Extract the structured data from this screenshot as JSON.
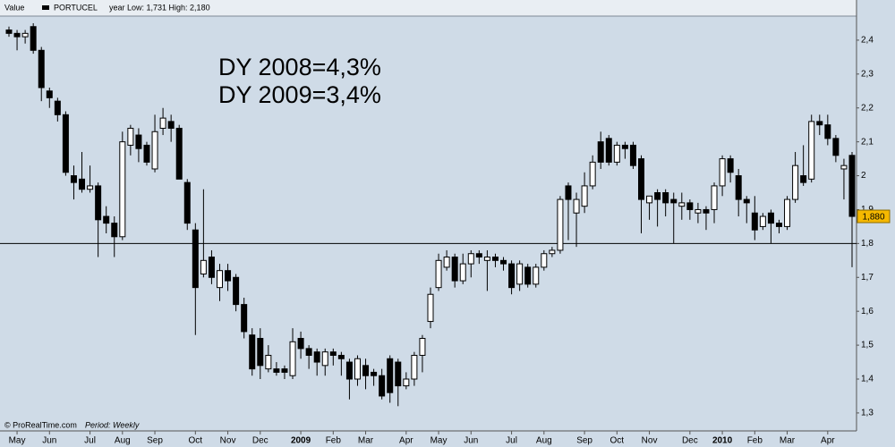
{
  "chart_data": {
    "type": "candlestick",
    "header": {
      "label": "Value",
      "symbol": "PORTUCEL",
      "range": "year Low: 1,731 High: 2,180"
    },
    "footer": {
      "source": "© ProRealTime.com",
      "period": "Period: Weekly"
    },
    "annotations": [
      "DY 2008=4,3%",
      "DY 2009=3,4%"
    ],
    "categories": [
      null,
      "May",
      null,
      null,
      null,
      "Jun",
      null,
      null,
      null,
      null,
      "Jul",
      null,
      null,
      null,
      "Aug",
      null,
      null,
      null,
      "Sep",
      null,
      null,
      null,
      null,
      "Oct",
      null,
      null,
      null,
      "Nov",
      null,
      null,
      null,
      "Dec",
      null,
      null,
      null,
      null,
      "2009",
      null,
      null,
      null,
      "Feb",
      null,
      null,
      null,
      "Mar",
      null,
      null,
      null,
      null,
      "Apr",
      null,
      null,
      null,
      "May",
      null,
      null,
      null,
      "Jun",
      null,
      null,
      null,
      null,
      "Jul",
      null,
      null,
      null,
      "Aug",
      null,
      null,
      null,
      null,
      "Sep",
      null,
      null,
      null,
      "Oct",
      null,
      null,
      null,
      "Nov",
      null,
      null,
      null,
      null,
      "Dec",
      null,
      null,
      null,
      "2010",
      null,
      null,
      null,
      "Feb",
      null,
      null,
      null,
      "Mar",
      null,
      null,
      null,
      null,
      "Apr",
      null,
      null,
      null
    ],
    "open": [
      2.43,
      2.42,
      2.41,
      2.44,
      2.37,
      2.25,
      2.22,
      2.18,
      2.0,
      1.99,
      1.96,
      1.97,
      1.88,
      1.86,
      1.82,
      2.09,
      2.12,
      2.09,
      2.02,
      2.14,
      2.16,
      2.14,
      1.98,
      1.84,
      1.71,
      1.76,
      1.67,
      1.72,
      1.7,
      1.62,
      1.53,
      1.52,
      1.43,
      1.43,
      1.43,
      1.41,
      1.52,
      1.49,
      1.48,
      1.44,
      1.48,
      1.47,
      1.45,
      1.4,
      1.44,
      1.42,
      1.41,
      1.46,
      1.45,
      1.38,
      1.4,
      1.47,
      1.57,
      1.67,
      1.73,
      1.76,
      1.69,
      1.74,
      1.77,
      1.75,
      1.76,
      1.75,
      1.74,
      1.68,
      1.73,
      1.68,
      1.73,
      1.77,
      1.78,
      1.97,
      1.89,
      1.91,
      1.97,
      2.1,
      2.11,
      2.04,
      2.09,
      2.09,
      2.05,
      1.92,
      1.95,
      1.95,
      1.93,
      1.91,
      1.92,
      1.89,
      1.9,
      1.9,
      1.97,
      2.05,
      2.0,
      1.93,
      1.89,
      1.85,
      1.89,
      1.86,
      1.85,
      1.93,
      2.0,
      1.99,
      2.16,
      2.15,
      2.11,
      2.02,
      2.06
    ],
    "high": [
      2.44,
      2.43,
      2.43,
      2.45,
      2.38,
      2.26,
      2.23,
      2.19,
      2.03,
      2.07,
      2.03,
      1.98,
      1.91,
      1.88,
      2.13,
      2.15,
      2.14,
      2.1,
      2.18,
      2.2,
      2.18,
      2.15,
      1.99,
      1.86,
      1.96,
      1.78,
      1.74,
      1.74,
      1.71,
      1.64,
      1.55,
      1.55,
      1.5,
      1.45,
      1.44,
      1.55,
      1.54,
      1.5,
      1.49,
      1.49,
      1.49,
      1.48,
      1.46,
      1.47,
      1.46,
      1.43,
      1.43,
      1.47,
      1.46,
      1.42,
      1.48,
      1.53,
      1.67,
      1.77,
      1.78,
      1.77,
      1.77,
      1.78,
      1.78,
      1.78,
      1.77,
      1.76,
      1.75,
      1.75,
      1.74,
      1.74,
      1.78,
      1.79,
      1.94,
      1.98,
      1.95,
      2.01,
      2.06,
      2.13,
      2.12,
      2.1,
      2.1,
      2.1,
      2.06,
      1.94,
      1.96,
      1.96,
      1.95,
      1.95,
      1.93,
      1.92,
      1.91,
      1.98,
      2.06,
      2.06,
      2.02,
      1.94,
      1.94,
      1.89,
      1.9,
      1.87,
      1.94,
      2.07,
      2.09,
      2.18,
      2.18,
      2.18,
      2.12,
      2.05,
      2.07
    ],
    "low": [
      2.41,
      2.37,
      2.39,
      2.36,
      2.22,
      2.2,
      2.16,
      2.0,
      1.93,
      1.95,
      1.95,
      1.76,
      1.83,
      1.76,
      1.81,
      2.06,
      2.04,
      2.03,
      2.01,
      2.12,
      2.1,
      1.99,
      1.84,
      1.53,
      1.7,
      1.68,
      1.63,
      1.66,
      1.6,
      1.52,
      1.41,
      1.4,
      1.42,
      1.41,
      1.4,
      1.4,
      1.46,
      1.43,
      1.41,
      1.41,
      1.44,
      1.41,
      1.34,
      1.38,
      1.37,
      1.38,
      1.34,
      1.33,
      1.32,
      1.37,
      1.38,
      1.42,
      1.55,
      1.66,
      1.72,
      1.67,
      1.68,
      1.7,
      1.74,
      1.66,
      1.73,
      1.72,
      1.65,
      1.66,
      1.67,
      1.67,
      1.72,
      1.76,
      1.77,
      1.81,
      1.79,
      1.89,
      1.96,
      2.02,
      2.03,
      2.03,
      2.05,
      2.02,
      1.83,
      1.87,
      1.85,
      1.88,
      1.8,
      1.87,
      1.87,
      1.86,
      1.84,
      1.86,
      1.94,
      1.98,
      1.88,
      1.86,
      1.81,
      1.84,
      1.8,
      1.83,
      1.84,
      1.92,
      1.97,
      1.98,
      2.12,
      2.09,
      2.04,
      1.93,
      1.73
    ],
    "close": [
      2.42,
      2.41,
      2.42,
      2.37,
      2.26,
      2.23,
      2.18,
      2.01,
      1.98,
      1.96,
      1.97,
      1.87,
      1.86,
      1.82,
      2.1,
      2.14,
      2.08,
      2.04,
      2.13,
      2.17,
      2.14,
      1.99,
      1.86,
      1.67,
      1.75,
      1.7,
      1.72,
      1.69,
      1.62,
      1.54,
      1.43,
      1.44,
      1.47,
      1.42,
      1.42,
      1.51,
      1.49,
      1.47,
      1.45,
      1.48,
      1.47,
      1.46,
      1.4,
      1.46,
      1.41,
      1.41,
      1.35,
      1.36,
      1.38,
      1.4,
      1.47,
      1.52,
      1.65,
      1.75,
      1.76,
      1.69,
      1.74,
      1.77,
      1.76,
      1.76,
      1.75,
      1.74,
      1.67,
      1.74,
      1.68,
      1.73,
      1.77,
      1.78,
      1.93,
      1.93,
      1.93,
      1.97,
      2.04,
      2.04,
      2.04,
      2.09,
      2.08,
      2.03,
      1.93,
      1.94,
      1.93,
      1.92,
      1.92,
      1.92,
      1.9,
      1.9,
      1.89,
      1.97,
      2.05,
      2.01,
      1.93,
      1.92,
      1.84,
      1.88,
      1.86,
      1.85,
      1.93,
      2.03,
      1.98,
      2.16,
      2.15,
      2.11,
      2.06,
      2.03,
      1.88
    ],
    "up_color": "#ffffff",
    "down_color": "#000000",
    "background": "#cfdbe7",
    "hline": 1.8,
    "last_price": {
      "value": 1.88,
      "label": "1,880"
    },
    "ylim": [
      1.247,
      2.471
    ],
    "yticks": [
      {
        "value": 1.3,
        "label": "1,3"
      },
      {
        "value": 1.4,
        "label": "1,4"
      },
      {
        "value": 1.5,
        "label": "1,5"
      },
      {
        "value": 1.6,
        "label": "1,6"
      },
      {
        "value": 1.7,
        "label": "1,7"
      },
      {
        "value": 1.8,
        "label": "1,8"
      },
      {
        "value": 1.9,
        "label": "1,9"
      },
      {
        "value": 2,
        "label": "2"
      },
      {
        "value": 2.1,
        "label": "2,1"
      },
      {
        "value": 2.2,
        "label": "2,2"
      },
      {
        "value": 2.3,
        "label": "2,3"
      },
      {
        "value": 2.4,
        "label": "2,4"
      }
    ]
  }
}
